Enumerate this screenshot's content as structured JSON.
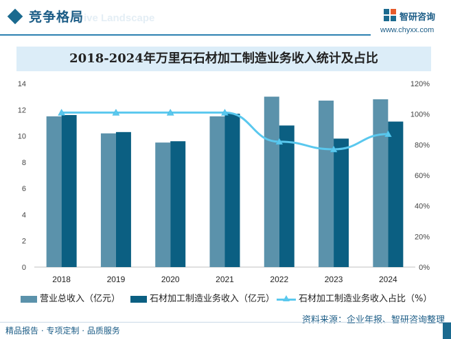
{
  "header": {
    "title": "竞争格局",
    "subtitle": "ive Landscape",
    "brand_name": "智研咨询",
    "brand_url": "www.chyxx.com"
  },
  "chart_title": "2018-2024年万里石石材加工制造业务收入统计及占比",
  "legend": {
    "series1": "营业总收入（亿元）",
    "series2": "石材加工制造业务收入（亿元）",
    "series3": "石材加工制造业务收入占比（%）"
  },
  "source": "资料来源：企业年报、智研咨询整理",
  "footer": "精品报告 · 专项定制 · 品质服务",
  "colors": {
    "series1": "#5b92ab",
    "series2": "#0b5f82",
    "series3": "#5ac8ee"
  },
  "chart_data": {
    "type": "bar",
    "categories": [
      "2018",
      "2019",
      "2020",
      "2021",
      "2022",
      "2023",
      "2024"
    ],
    "series": [
      {
        "name": "营业总收入（亿元）",
        "type": "bar",
        "axis": "left",
        "values": [
          11.5,
          10.2,
          9.5,
          11.5,
          13.0,
          12.7,
          12.8
        ]
      },
      {
        "name": "石材加工制造业务收入（亿元）",
        "type": "bar",
        "axis": "left",
        "values": [
          11.6,
          10.3,
          9.6,
          11.7,
          10.8,
          9.8,
          11.1
        ]
      },
      {
        "name": "石材加工制造业务收入占比（%）",
        "type": "line",
        "axis": "right",
        "marker": "triangle",
        "values": [
          101,
          101,
          101,
          101,
          82,
          77,
          87
        ]
      }
    ],
    "y_left": {
      "min": 0,
      "max": 14,
      "ticks": [
        "0",
        "2",
        "4",
        "6",
        "8",
        "10",
        "12",
        "14"
      ]
    },
    "y_right": {
      "min": 0,
      "max": 120,
      "ticks": [
        "0%",
        "20%",
        "40%",
        "60%",
        "80%",
        "100%",
        "120%"
      ]
    },
    "grid": false,
    "legend_position": "bottom"
  }
}
